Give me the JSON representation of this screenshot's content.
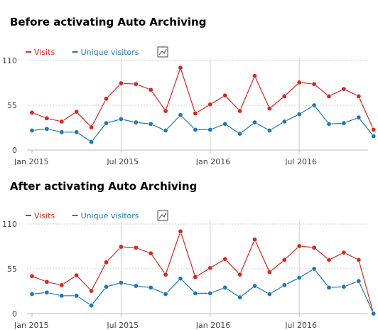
{
  "charts": [
    {
      "heading": "Before activating Auto Archiving",
      "chart_data": {
        "type": "line",
        "x": [
          "Jan 2015",
          "Feb 2015",
          "Mar 2015",
          "Apr 2015",
          "May 2015",
          "Jun 2015",
          "Jul 2015",
          "Aug 2015",
          "Sep 2015",
          "Oct 2015",
          "Nov 2015",
          "Dec 2015",
          "Jan 2016",
          "Feb 2016",
          "Mar 2016",
          "Apr 2016",
          "May 2016",
          "Jun 2016",
          "Jul 2016",
          "Aug 2016",
          "Sep 2016",
          "Oct 2016",
          "Nov 2016",
          "Dec 2016"
        ],
        "xticks": [
          "Jan 2015",
          "Jul 2015",
          "Jan 2016",
          "Jul 2016"
        ],
        "yticks": [
          0,
          55,
          110
        ],
        "ylim": [
          0,
          110
        ],
        "legend_position": "top-left",
        "series": [
          {
            "name": "Visits",
            "color": "#d4291f",
            "values": [
              46,
              39,
              35,
              47,
              28,
              63,
              82,
              81,
              74,
              48,
              101,
              45,
              56,
              67,
              48,
              91,
              51,
              66,
              83,
              81,
              66,
              75,
              66,
              25
            ]
          },
          {
            "name": "Unique visitors",
            "color": "#1f77b4",
            "values": [
              24,
              26,
              22,
              22,
              10,
              33,
              38,
              34,
              32,
              24,
              43,
              25,
              25,
              32,
              20,
              34,
              24,
              35,
              44,
              55,
              32,
              33,
              40,
              17
            ]
          }
        ]
      }
    },
    {
      "heading": "After activating Auto Archiving",
      "chart_data": {
        "type": "line",
        "x": [
          "Jan 2015",
          "Feb 2015",
          "Mar 2015",
          "Apr 2015",
          "May 2015",
          "Jun 2015",
          "Jul 2015",
          "Aug 2015",
          "Sep 2015",
          "Oct 2015",
          "Nov 2015",
          "Dec 2015",
          "Jan 2016",
          "Feb 2016",
          "Mar 2016",
          "Apr 2016",
          "May 2016",
          "Jun 2016",
          "Jul 2016",
          "Aug 2016",
          "Sep 2016",
          "Oct 2016",
          "Nov 2016",
          "Dec 2016"
        ],
        "xticks": [
          "Jan 2015",
          "Jul 2015",
          "Jan 2016",
          "Jul 2016"
        ],
        "yticks": [
          0,
          55,
          110
        ],
        "ylim": [
          0,
          110
        ],
        "legend_position": "top-left",
        "series": [
          {
            "name": "Visits",
            "color": "#d4291f",
            "values": [
              46,
              39,
              35,
              47,
              28,
              63,
              82,
              81,
              74,
              48,
              101,
              45,
              56,
              67,
              48,
              91,
              51,
              66,
              83,
              81,
              66,
              75,
              66,
              0
            ]
          },
          {
            "name": "Unique visitors",
            "color": "#1f77b4",
            "values": [
              24,
              26,
              22,
              22,
              10,
              33,
              38,
              34,
              32,
              24,
              43,
              25,
              25,
              32,
              20,
              34,
              24,
              35,
              44,
              55,
              32,
              33,
              40,
              0
            ]
          }
        ]
      }
    }
  ],
  "icons": {
    "chart_type_toggle": "line-chart-icon"
  }
}
